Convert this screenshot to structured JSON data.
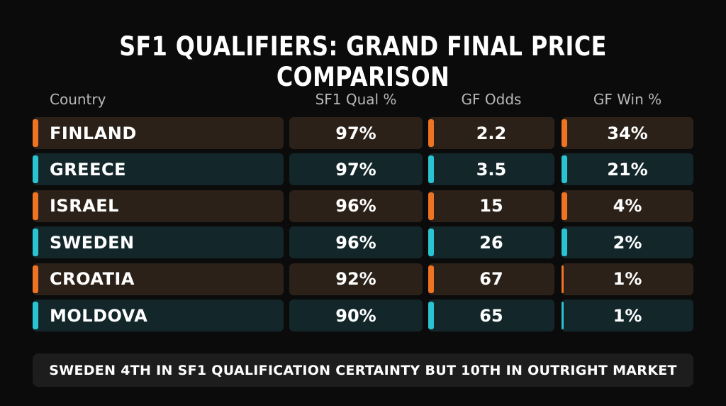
{
  "title": "SF1 QUALIFIERS: GRAND FINAL PRICE COMPARISON",
  "colors": {
    "orange": "#ee7424",
    "teal": "#2ac3d1"
  },
  "chart_data": {
    "type": "table",
    "title": "SF1 QUALIFIERS: GRAND FINAL PRICE COMPARISON",
    "columns": [
      "Country",
      "SF1 Qual %",
      "GF Odds",
      "GF Win %"
    ],
    "rows": [
      {
        "country": "FINLAND",
        "qual": "97%",
        "odds": "2.2",
        "win": "34%",
        "color": "orange",
        "qual_value": 97,
        "odds_value": 2.2,
        "win_value": 34
      },
      {
        "country": "GREECE",
        "qual": "97%",
        "odds": "3.5",
        "win": "21%",
        "color": "teal",
        "qual_value": 97,
        "odds_value": 3.5,
        "win_value": 21
      },
      {
        "country": "ISRAEL",
        "qual": "96%",
        "odds": "15",
        "win": "4%",
        "color": "orange",
        "qual_value": 96,
        "odds_value": 15,
        "win_value": 4
      },
      {
        "country": "SWEDEN",
        "qual": "96%",
        "odds": "26",
        "win": "2%",
        "color": "teal",
        "qual_value": 96,
        "odds_value": 26,
        "win_value": 2
      },
      {
        "country": "CROATIA",
        "qual": "92%",
        "odds": "67",
        "win": "1%",
        "color": "orange",
        "qual_value": 92,
        "odds_value": 67,
        "win_value": 1
      },
      {
        "country": "MOLDOVA",
        "qual": "90%",
        "odds": "65",
        "win": "1%",
        "color": "teal",
        "qual_value": 90,
        "odds_value": 65,
        "win_value": 1
      }
    ]
  },
  "footer": "SWEDEN 4TH IN SF1 QUALIFICATION CERTAINTY BUT 10TH IN OUTRIGHT MARKET"
}
